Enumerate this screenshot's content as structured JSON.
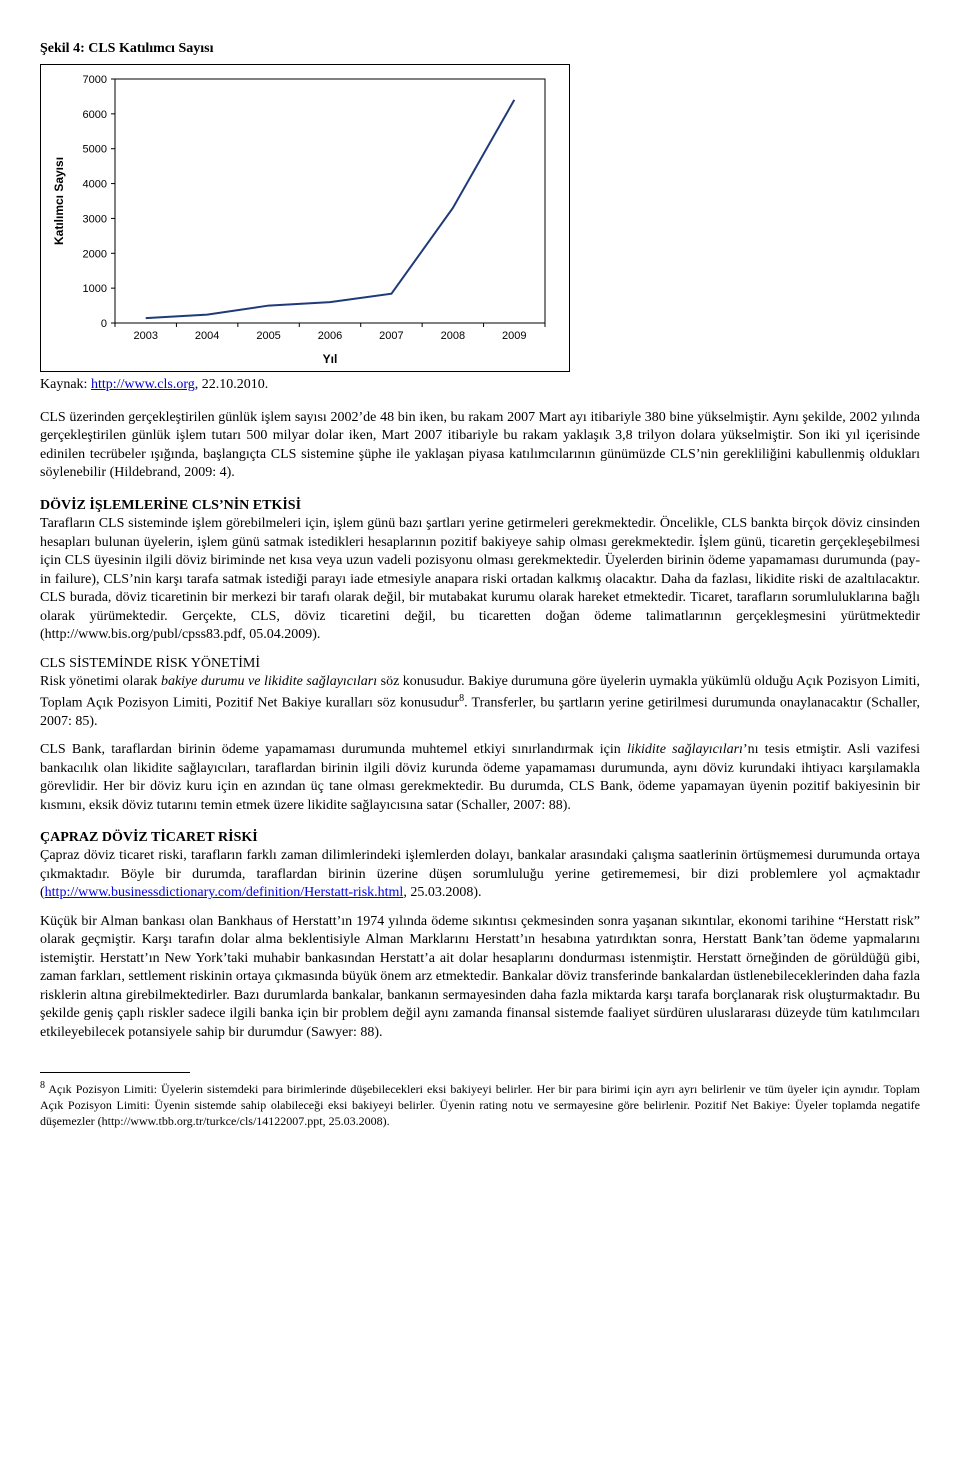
{
  "figure": {
    "title": "Şekil 4:  CLS Katılımcı Sayısı",
    "type": "line",
    "categories": [
      "2003",
      "2004",
      "2005",
      "2006",
      "2007",
      "2008",
      "2009"
    ],
    "values": [
      140,
      240,
      500,
      600,
      840,
      3300,
      6400
    ],
    "line_color": "#1f3a7a",
    "line_width": 2,
    "grid_color": "#000000",
    "background_color": "#ffffff",
    "ylabel": "Katılımcı Sayısı",
    "xlabel": "Yıl",
    "ylim": [
      0,
      7000
    ],
    "ytick_step": 1000,
    "yticks": [
      "0",
      "1000",
      "2000",
      "3000",
      "4000",
      "5000",
      "6000",
      "7000"
    ],
    "title_fontsize": 14,
    "label_fontsize": 12,
    "tick_fontsize": 11
  },
  "source": {
    "prefix": "Kaynak: ",
    "url_text": "http://www.cls.org",
    "suffix": ", 22.10.2010."
  },
  "para1": "CLS üzerinden gerçekleştirilen günlük işlem sayısı 2002’de 48 bin iken, bu rakam 2007 Mart ayı itibariyle 380 bine yükselmiştir. Aynı şekilde, 2002 yılında gerçekleştirilen günlük işlem tutarı 500 milyar dolar iken, Mart 2007 itibariyle bu rakam yaklaşık 3,8 trilyon dolara yükselmiştir. Son iki yıl içerisinde edinilen tecrübeler ışığında, başlangıçta CLS sistemine şüphe ile yaklaşan piyasa katılımcılarının günümüzde CLS’nin gerekliliğini kabullenmiş oldukları söylenebilir (Hildebrand, 2009: 4).",
  "section2_title": "DÖVİZ İŞLEMLERİNE CLS’NİN ETKİSİ",
  "para2": "Tarafların CLS sisteminde işlem görebilmeleri için, işlem günü bazı şartları yerine getirmeleri gerekmektedir. Öncelikle, CLS bankta birçok döviz cinsinden hesapları bulunan üyelerin, işlem günü satmak istedikleri hesaplarının pozitif bakiyeye sahip olması gerekmektedir. İşlem günü, ticaretin gerçekleşebilmesi için CLS üyesinin ilgili döviz biriminde net kısa veya uzun vadeli pozisyonu olması gerekmektedir. Üyelerden birinin ödeme yapamaması durumunda (pay-in failure), CLS’nin karşı tarafa satmak istediği parayı iade etmesiyle anapara riski ortadan kalkmış olacaktır. Daha da fazlası, likidite riski de azaltılacaktır. CLS burada, döviz ticaretinin bir merkezi bir tarafı olarak değil, bir mutabakat kurumu olarak hareket etmektedir. Ticaret, tarafların sorumluluklarına bağlı olarak yürümektedir. Gerçekte, CLS, döviz ticaretini değil, bu ticaretten doğan ödeme talimatlarının gerçekleşmesini yürütmektedir (http://www.bis.org/publ/cpss83.pdf, 05.04.2009).",
  "subsection2_title": "CLS SİSTEMİNDE RİSK YÖNETİMİ",
  "para3_a": "Risk yönetimi olarak ",
  "para3_b_italic": "bakiye durumu ve likidite sağlayıcıları",
  "para3_c": " söz konusudur. Bakiye durumuna göre üyelerin uymakla yükümlü olduğu Açık Pozisyon Limiti, Toplam Açık Pozisyon Limiti, Pozitif Net Bakiye kuralları söz konusudur",
  "para3_d": ". Transferler, bu şartların yerine getirilmesi durumunda onaylanacaktır (Schaller, 2007: 85).",
  "para4_a": "CLS Bank, taraflardan birinin ödeme yapamaması durumunda muhtemel etkiyi sınırlandırmak için ",
  "para4_b_italic": "likidite sağlayıcıları",
  "para4_c": "’nı tesis etmiştir. Asli vazifesi bankacılık olan likidite sağlayıcıları, taraflardan birinin ilgili döviz kurunda ödeme yapamaması durumunda, aynı döviz kurundaki ihtiyacı karşılamakla görevlidir. Her bir döviz kuru için en azından üç tane olması gerekmektedir. Bu durumda, CLS Bank, ödeme yapamayan üyenin pozitif bakiyesinin bir kısmını, eksik döviz tutarını temin etmek üzere likidite sağlayıcısına satar (Schaller, 2007: 88).",
  "section3_title": "ÇAPRAZ DÖVİZ TİCARET RİSKİ",
  "para5_a": "Çapraz döviz ticaret riski, tarafların farklı zaman dilimlerindeki işlemlerden dolayı, bankalar arasındaki çalışma saatlerinin örtüşmemesi durumunda ortaya çıkmaktadır. Böyle bir durumda, taraflardan birinin üzerine düşen sorumluluğu yerine getirememesi, bir dizi problemlere yol açmaktadır (",
  "para5_link": "http://www.businessdictionary.com/definition/Herstatt-risk.html",
  "para5_b": ", 25.03.2008).",
  "para6": "Küçük bir Alman bankası olan Bankhaus of Herstatt’ın 1974 yılında ödeme sıkıntısı çekmesinden sonra yaşanan sıkıntılar, ekonomi tarihine “Herstatt risk” olarak geçmiştir. Karşı tarafın dolar alma beklentisiyle Alman Marklarını Herstatt’ın hesabına yatırdıktan sonra, Herstatt Bank’tan ödeme yapmalarını istemiştir. Herstatt’ın New York’taki muhabir bankasından Herstatt’a ait dolar hesaplarını dondurması istenmiştir. Herstatt örneğinden de görüldüğü gibi, zaman farkları, settlement riskinin ortaya çıkmasında büyük önem arz etmektedir. Bankalar döviz transferinde bankalardan üstlenebileceklerinden daha fazla risklerin altına girebilmektedirler. Bazı durumlarda bankalar, bankanın sermayesinden daha fazla miktarda karşı tarafa borçlanarak risk oluşturmaktadır. Bu şekilde geniş çaplı riskler sadece ilgili banka için bir problem değil aynı zamanda finansal sistemde faaliyet sürdüren uluslararası düzeyde tüm katılımcıları etkileyebilecek potansiyele sahip bir durumdur (Sawyer: 88).",
  "footnote": {
    "num": "8",
    "text": " Açık Pozisyon Limiti: Üyelerin sistemdeki para birimlerinde düşebilecekleri eksi bakiyeyi belirler. Her bir para birimi için ayrı ayrı belirlenir ve tüm üyeler için aynıdır. Toplam Açık Pozisyon Limiti: Üyenin sistemde sahip olabileceği eksi bakiyeyi belirler. Üyenin rating notu ve sermayesine göre belirlenir. Pozitif Net Bakiye: Üyeler toplamda negatife düşemezler (http://www.tbb.org.tr/turkce/cls/14122007.ppt, 25.03.2008)."
  }
}
